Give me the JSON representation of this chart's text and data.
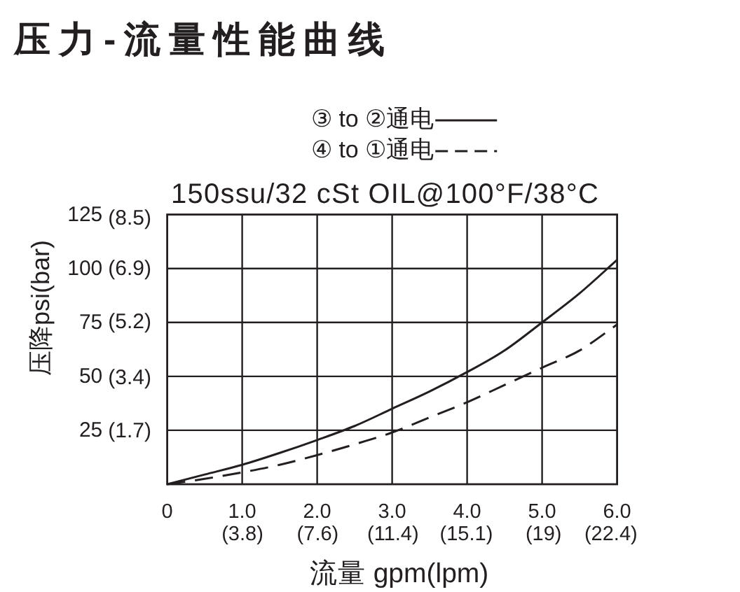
{
  "chart_data": {
    "type": "line",
    "title": "压力-流量性能曲线",
    "subtitle": "150ssu/32 cSt OIL@100°F/38°C",
    "xlabel": "流量 gpm(lpm)",
    "ylabel": "压降psi(bar)",
    "x": [
      0,
      0.5,
      1,
      1.5,
      2,
      2.5,
      3,
      3.5,
      4,
      4.5,
      5,
      5.5,
      6
    ],
    "series": [
      {
        "name": "③ to ②通电",
        "color": "#231f20",
        "line_style": "solid",
        "values": [
          0,
          4.5,
          9,
          14.5,
          20.5,
          27,
          35,
          43,
          52,
          62,
          75,
          88.5,
          104
        ]
      },
      {
        "name": "④ to ①通电",
        "color": "#231f20",
        "line_style": "dashed",
        "values": [
          0,
          2.5,
          5.5,
          9,
          13.5,
          18.5,
          24,
          31,
          38,
          46,
          54,
          62,
          74
        ]
      }
    ],
    "xlim": [
      0,
      6
    ],
    "ylim": [
      0,
      125
    ],
    "xticks": [
      {
        "value": 0,
        "label": "0"
      },
      {
        "value": 1,
        "label": "1.0"
      },
      {
        "value": 2,
        "label": "2.0"
      },
      {
        "value": 3,
        "label": "3.0"
      },
      {
        "value": 4,
        "label": "4.0"
      },
      {
        "value": 5,
        "label": "5.0"
      },
      {
        "value": 6,
        "label": "6.0"
      }
    ],
    "x2lim": [
      0,
      22.71
    ],
    "x2ticks": [
      {
        "value": 3.8,
        "label": "(3.8)"
      },
      {
        "value": 7.6,
        "label": "(7.6)"
      },
      {
        "value": 11.4,
        "label": "(11.4)"
      },
      {
        "value": 15.1,
        "label": "(15.1)"
      },
      {
        "value": 19,
        "label": "(19)"
      },
      {
        "value": 22.4,
        "label": "(22.4)"
      }
    ],
    "yticks": [
      {
        "value": 0,
        "label": null
      },
      25,
      50,
      75,
      100,
      125
    ],
    "y2lim": [
      0,
      8.62
    ],
    "y2ticks": [
      {
        "value": 1.7,
        "label": "(1.7)"
      },
      {
        "value": 3.4,
        "label": "(3.4)"
      },
      {
        "value": 5.2,
        "label": "(5.2)"
      },
      {
        "value": 6.9,
        "label": "(6.9)"
      },
      {
        "value": 8.5,
        "label": "(8.5)"
      }
    ],
    "grid": true,
    "legend": "top"
  }
}
